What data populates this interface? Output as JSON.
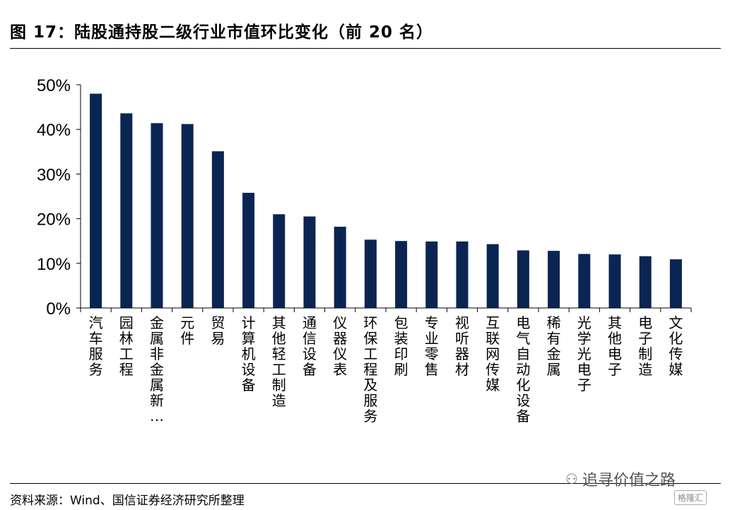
{
  "title": "图 17：陆股通持股二级行业市值环比变化（前 20 名）",
  "source": "资料来源：Wind、国信证券经济研究所整理",
  "watermark": "追寻价值之路",
  "badge": "格隆汇",
  "colors": {
    "bar": "#0b2553",
    "axis": "#000000"
  },
  "chart_data": {
    "type": "bar",
    "categories": [
      "汽车服务",
      "园林工程",
      "金属非金属新…",
      "元件",
      "贸易",
      "计算机设备",
      "其他轻工制造",
      "通信设备",
      "仪器仪表",
      "环保工程及服务",
      "包装印刷",
      "专业零售",
      "视听器材",
      "互联网传媒",
      "电气自动化设备",
      "稀有金属",
      "光学光电子",
      "其他电子",
      "电子制造",
      "文化传媒"
    ],
    "values": [
      48.0,
      43.6,
      41.4,
      41.2,
      35.1,
      25.8,
      21.0,
      20.5,
      18.2,
      15.3,
      15.0,
      14.9,
      14.9,
      14.3,
      12.9,
      12.8,
      12.1,
      12.0,
      11.6,
      10.9
    ],
    "ylim": [
      0,
      50
    ],
    "yticks": [
      0,
      10,
      20,
      30,
      40,
      50
    ],
    "ytick_labels": [
      "0%",
      "10%",
      "20%",
      "30%",
      "40%",
      "50%"
    ],
    "xlabel": "",
    "ylabel": "",
    "grid": false,
    "legend": "none"
  }
}
